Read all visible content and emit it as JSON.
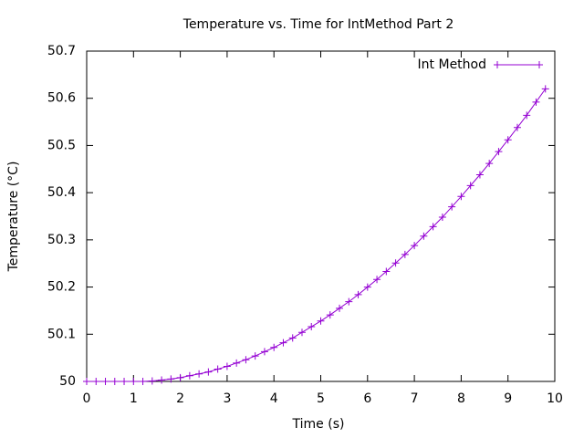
{
  "chart_data": {
    "type": "line",
    "title": "Temperature vs. Time for IntMethod Part 2",
    "x_label": "Time (s)",
    "y_label": "Temperature (°C)",
    "x": [
      0,
      0.2,
      0.4,
      0.6,
      0.8,
      1.0,
      1.2,
      1.4,
      1.6,
      1.8,
      2.0,
      2.2,
      2.4,
      2.6,
      2.8,
      3.0,
      3.2,
      3.4,
      3.6,
      3.8,
      4.0,
      4.2,
      4.4,
      4.6,
      4.8,
      5.0,
      5.2,
      5.4,
      5.6,
      5.8,
      6.0,
      6.2,
      6.4,
      6.6,
      6.8,
      7.0,
      7.2,
      7.4,
      7.6,
      7.8,
      8.0,
      8.2,
      8.4,
      8.6,
      8.8,
      9.0,
      9.2,
      9.4,
      9.6,
      9.8
    ],
    "series": [
      {
        "name": "Int Method",
        "color": "#9400d3",
        "values": [
          50,
          50,
          50,
          50,
          50,
          50,
          50.0,
          50.001,
          50.003,
          50.005,
          50.008,
          50.012,
          50.016,
          50.02,
          50.026,
          50.032,
          50.039,
          50.046,
          50.054,
          50.063,
          50.072,
          50.082,
          50.092,
          50.104,
          50.116,
          50.128,
          50.141,
          50.155,
          50.169,
          50.184,
          50.2,
          50.216,
          50.233,
          50.251,
          50.269,
          50.288,
          50.308,
          50.328,
          50.348,
          50.37,
          50.392,
          50.415,
          50.438,
          50.462,
          50.487,
          50.512,
          50.538,
          50.564,
          50.592,
          50.62
        ]
      }
    ],
    "xlim": [
      0,
      10
    ],
    "xticks": [
      0,
      1,
      2,
      3,
      4,
      5,
      6,
      7,
      8,
      9,
      10
    ],
    "ylim": [
      50,
      50.7
    ],
    "yticks": [
      50,
      50.1,
      50.2,
      50.3,
      50.4,
      50.5,
      50.6,
      50.7
    ],
    "legend": "upper right",
    "grid": false
  }
}
